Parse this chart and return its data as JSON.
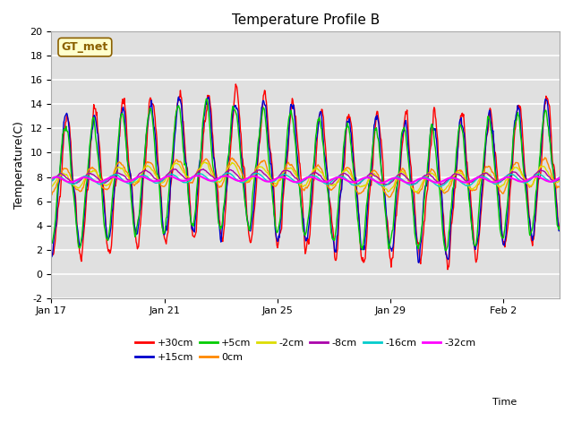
{
  "title": "Temperature Profile B",
  "xlabel": "Time",
  "ylabel": "Temperature(C)",
  "ylim": [
    -2,
    20
  ],
  "annotation_text": "GT_met",
  "background_color": "#ffffff",
  "plot_bg_color": "#e0e0e0",
  "grid_color": "#ffffff",
  "series": [
    {
      "label": "+30cm",
      "color": "#ff0000",
      "lw": 1.0
    },
    {
      "label": "+15cm",
      "color": "#0000cc",
      "lw": 1.0
    },
    {
      "label": "+5cm",
      "color": "#00cc00",
      "lw": 1.0
    },
    {
      "label": "0cm",
      "color": "#ff8800",
      "lw": 1.0
    },
    {
      "label": "-2cm",
      "color": "#dddd00",
      "lw": 1.0
    },
    {
      "label": "-8cm",
      "color": "#aa00aa",
      "lw": 1.0
    },
    {
      "label": "-16cm",
      "color": "#00cccc",
      "lw": 1.0
    },
    {
      "label": "-32cm",
      "color": "#ff00ff",
      "lw": 1.5
    }
  ],
  "xtick_labels": [
    "Jan 17",
    "Jan 21",
    "Jan 25",
    "Jan 29",
    "Feb 2"
  ],
  "xtick_positions": [
    0,
    4,
    8,
    12,
    16
  ],
  "ytick_positions": [
    -2,
    0,
    2,
    4,
    6,
    8,
    10,
    12,
    14,
    16,
    18,
    20
  ],
  "n_days": 18,
  "seed": 42
}
